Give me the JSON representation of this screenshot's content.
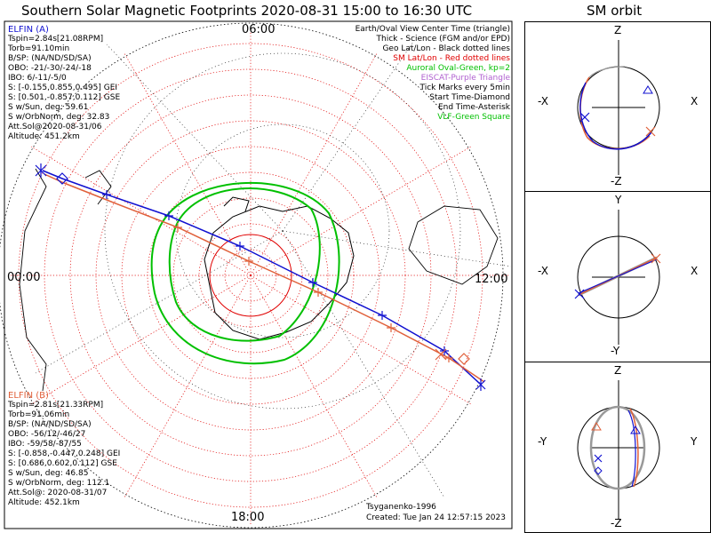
{
  "title": "Southern Solar Magnetic Footprints 2020-08-31 15:00 to 16:30 UTC",
  "orbit_title": "SM orbit",
  "mlt_labels": {
    "top": "06:00",
    "left": "00:00",
    "right": "12:00",
    "bottom": "18:00"
  },
  "legend": [
    {
      "text": "Earth/Oval View Center Time (triangle)",
      "color": "#000000"
    },
    {
      "text": "Thick - Science (FGM and/or EPD)",
      "color": "#000000"
    },
    {
      "text": "Geo Lat/Lon - Black dotted lines",
      "color": "#000000"
    },
    {
      "text": "SM Lat/Lon - Red dotted lines",
      "color": "#e00000"
    },
    {
      "text": "Auroral Oval-Green, kp=2",
      "color": "#00c000"
    },
    {
      "text": "EISCAT-Purple Triangle",
      "color": "#b060d0"
    },
    {
      "text": "Tick Marks every 5min",
      "color": "#000000"
    },
    {
      "text": "Start Time-Diamond",
      "color": "#000000"
    },
    {
      "text": "End Time-Asterisk",
      "color": "#000000"
    },
    {
      "text": "VLF-Green Square",
      "color": "#00c000"
    }
  ],
  "elfin_a": {
    "title": "ELFIN (A)",
    "lines": [
      "Tspin=2.84s[21.08RPM]",
      "Torb=91.10min",
      "B/SP: (NA/ND/SD/SA)",
      "OBO: -21/-30/-24/-18",
      "IBO: 6/-11/-5/0",
      "S: [-0.155,0.855,0.495] GEI",
      "S: [0.501,-0.857,0.112] GSE",
      "S w/Sun, deg: 59.61",
      "S w/OrbNorm, deg: 32.83",
      "Att.Sol@2020-08-31/06",
      "Altitude: 451.2km"
    ]
  },
  "elfin_b": {
    "title": "ELFIN (B)",
    "lines": [
      "Tspin=2.81s[21.33RPM]",
      "Torb=91.06min",
      "B/SP: (NA/ND/SD/SA)",
      "OBO: -56/12/-46/27",
      "IBO: -59/58/-87/55",
      "S: [-0.858,-0.447,0.248] GEI",
      "S: [0.686,0.602,0.112] GSE",
      "S w/Sun, deg: 46.85",
      "S w/OrbNorm, deg: 112.1",
      "Att.Sol@: 2020-08-31/07",
      "Altitude: 452.1km"
    ]
  },
  "credit": "Tsyganenko-1996",
  "created": "Created: Tue Jan 24 12:57:15 2023",
  "panels": {
    "xz": {
      "top": "Z",
      "bottom": "-Z",
      "left": "-X",
      "right": "X"
    },
    "xy": {
      "top": "Y",
      "bottom": "-Y",
      "left": "-X",
      "right": "X"
    },
    "yz": {
      "top": "Z",
      "bottom": "-Z",
      "left": "-Y",
      "right": "Y"
    }
  },
  "colors": {
    "elfin_a": "#1010d0",
    "elfin_b": "#e0603a",
    "sm_grid": "#e00000",
    "oval": "#00c000",
    "geo": "#000000"
  },
  "chart_data": {
    "type": "scatter",
    "title": "Southern Solar Magnetic Footprints 2020-08-31 15:00 to 16:30 UTC",
    "projection": "polar, magnetic south pole at center",
    "series": [
      {
        "name": "ELFIN (A)",
        "color": "#1010d0"
      },
      {
        "name": "ELFIN (B)",
        "color": "#e0603a"
      }
    ]
  }
}
